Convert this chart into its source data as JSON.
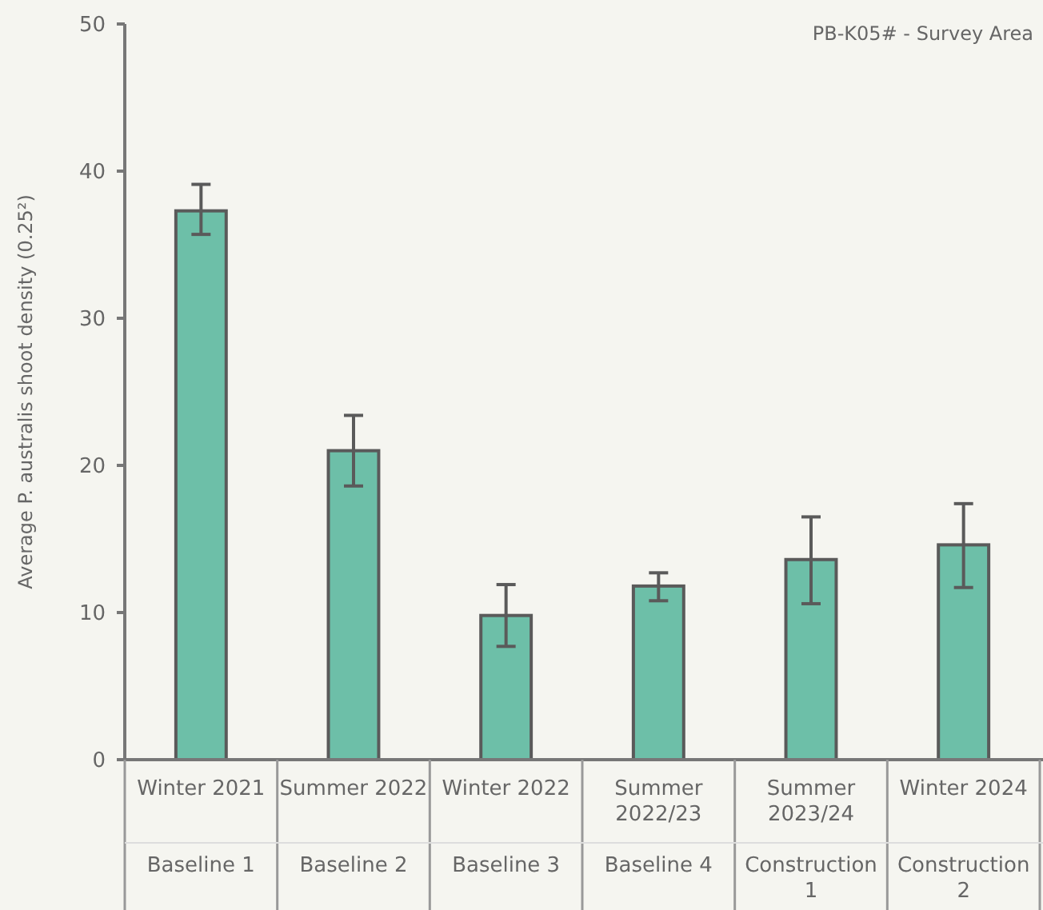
{
  "chart_data": {
    "type": "bar",
    "title": "PB-K05# - Survey Area",
    "ylabel": "Average P. australis shoot density (0.25²)",
    "categories": [
      "Winter 2021",
      "Summer 2022",
      "Winter 2022",
      "Summer 2022/23",
      "Summer 2023/24",
      "Winter 2024"
    ],
    "values": [
      37.3,
      21,
      9.8,
      11.8,
      13.6,
      14.6
    ],
    "errors": [
      [
        35.7,
        39.1
      ],
      [
        18.6,
        23.4
      ],
      [
        7.7,
        11.9
      ],
      [
        10.8,
        12.7
      ],
      [
        10.6,
        16.5
      ],
      [
        11.7,
        17.4
      ]
    ],
    "color": "#6dbfa8",
    "ylim": [
      0,
      50
    ],
    "yticks": [
      0,
      10,
      20,
      30,
      40,
      50
    ],
    "grid": false,
    "annotations": [
      "Baseline 1",
      "Baseline 2",
      "Baseline 3",
      "Baseline 4",
      "Construction 1",
      "Construction 2"
    ]
  }
}
